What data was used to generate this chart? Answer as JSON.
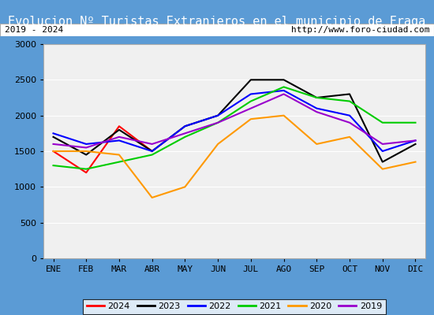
{
  "title": "Evolucion Nº Turistas Extranjeros en el municipio de Fraga",
  "subtitle_left": "2019 - 2024",
  "subtitle_right": "http://www.foro-ciudad.com",
  "title_color": "#4472c4",
  "title_bg": "#4472c4",
  "months": [
    "ENE",
    "FEB",
    "MAR",
    "ABR",
    "MAY",
    "JUN",
    "JUL",
    "AGO",
    "SEP",
    "OCT",
    "NOV",
    "DIC"
  ],
  "series": {
    "2024": {
      "color": "#ff0000",
      "data": [
        1500,
        1200,
        1850,
        1500,
        null,
        null,
        null,
        null,
        null,
        null,
        null,
        null
      ]
    },
    "2023": {
      "color": "#000000",
      "data": [
        1700,
        1450,
        1800,
        1500,
        1850,
        2000,
        2500,
        2500,
        2250,
        2300,
        1350,
        1600
      ]
    },
    "2022": {
      "color": "#0000ff",
      "data": [
        1750,
        1600,
        1650,
        1500,
        1850,
        2000,
        2300,
        2350,
        2100,
        2000,
        1500,
        1650
      ]
    },
    "2021": {
      "color": "#00cc00",
      "data": [
        1300,
        1250,
        1350,
        1450,
        1700,
        1900,
        2200,
        2400,
        2250,
        2200,
        1900,
        1900
      ]
    },
    "2020": {
      "color": "#ff9900",
      "data": [
        1500,
        1500,
        1450,
        850,
        1000,
        1600,
        1950,
        2000,
        1600,
        1700,
        1250,
        1350
      ]
    },
    "2019": {
      "color": "#9900cc",
      "data": [
        1600,
        1550,
        1700,
        1600,
        1750,
        1900,
        2100,
        2300,
        2050,
        1900,
        1600,
        1650
      ]
    }
  },
  "ylim": [
    0,
    3000
  ],
  "yticks": [
    0,
    500,
    1000,
    1500,
    2000,
    2500,
    3000
  ],
  "background_color": "#ffffff",
  "plot_bg": "#f0f0f0",
  "grid_color": "#ffffff",
  "legend_order": [
    "2024",
    "2023",
    "2022",
    "2021",
    "2020",
    "2019"
  ]
}
